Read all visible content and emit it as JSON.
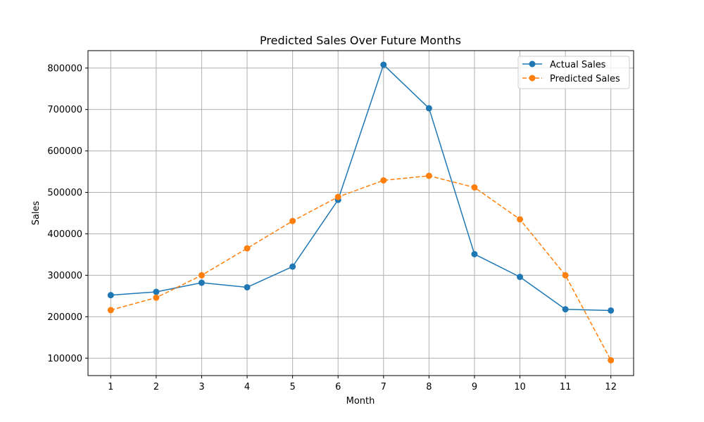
{
  "chart_data": {
    "type": "line",
    "title": "Predicted Sales Over Future Months",
    "xlabel": "Month",
    "ylabel": "Sales",
    "x": [
      1,
      2,
      3,
      4,
      5,
      6,
      7,
      8,
      9,
      10,
      11,
      12
    ],
    "xlim": [
      0.5,
      12.5
    ],
    "ylim": [
      58000,
      842000
    ],
    "yticks": [
      100000,
      200000,
      300000,
      400000,
      500000,
      600000,
      700000,
      800000
    ],
    "grid": true,
    "legend_position": "top-right",
    "series": [
      {
        "name": "Actual Sales",
        "color": "#1f77b4",
        "style": "solid",
        "values": [
          252000,
          260000,
          282000,
          271000,
          321000,
          482000,
          808000,
          703000,
          351000,
          296000,
          218000,
          215000
        ]
      },
      {
        "name": "Predicted Sales",
        "color": "#ff7f0e",
        "style": "dashed",
        "values": [
          216000,
          246000,
          300000,
          365000,
          431000,
          489000,
          529000,
          540000,
          512000,
          435000,
          300000,
          95000
        ]
      }
    ]
  }
}
